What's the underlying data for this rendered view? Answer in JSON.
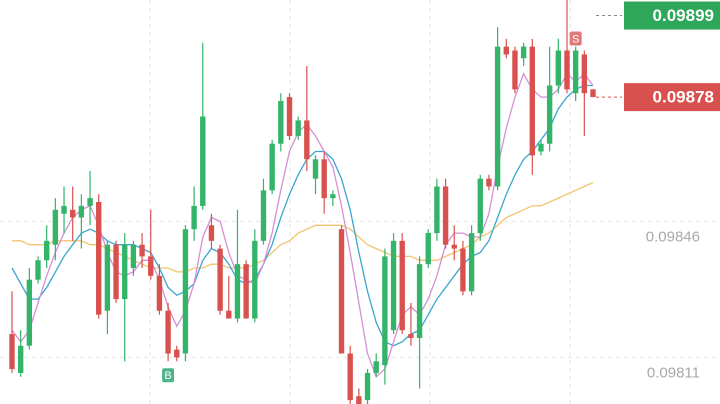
{
  "chart_data": {
    "type": "candlestick",
    "open": [
      0.09817,
      0.09807,
      0.09814,
      0.09831,
      0.09836,
      0.0984,
      0.09848,
      0.09849,
      0.09847,
      0.0985,
      0.09851,
      0.09823,
      0.0984,
      0.09826,
      0.09834,
      0.0984,
      0.09837,
      0.09832,
      0.09823,
      0.09813,
      0.09812,
      0.09844,
      0.0985,
      0.09845,
      0.09839,
      0.09823,
      0.09821,
      0.09835,
      0.09821,
      0.09841,
      0.09854,
      0.09866,
      0.09878,
      0.09868,
      0.09872,
      0.09857,
      0.09862,
      0.09852,
      0.09844,
      0.09812,
      0.09801,
      0.098,
      0.09807,
      0.09809,
      0.09818,
      0.09841,
      0.09817,
      0.09816,
      0.09835,
      0.09843,
      0.09855,
      0.0984,
      0.09839,
      0.09828,
      0.09843,
      0.09857,
      0.09855,
      0.09891,
      0.0989,
      0.09888,
      0.09891,
      0.09864,
      0.09866,
      0.09881,
      0.0989,
      0.09879,
      0.09889,
      0.0988
    ],
    "high": [
      0.09828,
      0.09818,
      0.09834,
      0.09837,
      0.09845,
      0.09852,
      0.09855,
      0.09855,
      0.09853,
      0.09859,
      0.09853,
      0.09841,
      0.09841,
      0.09843,
      0.09841,
      0.09843,
      0.09849,
      0.09835,
      0.09825,
      0.09814,
      0.09845,
      0.09855,
      0.09892,
      0.09848,
      0.0984,
      0.09832,
      0.09849,
      0.09836,
      0.09844,
      0.09857,
      0.09867,
      0.09879,
      0.09879,
      0.09873,
      0.09886,
      0.09863,
      0.09864,
      0.09854,
      0.09845,
      0.09814,
      0.09803,
      0.09808,
      0.09812,
      0.09839,
      0.09843,
      0.09843,
      0.09825,
      0.09837,
      0.09844,
      0.09857,
      0.09857,
      0.09845,
      0.09841,
      0.09845,
      0.09858,
      0.09858,
      0.09896,
      0.09893,
      0.09891,
      0.09892,
      0.09893,
      0.09867,
      0.09891,
      0.09893,
      0.09903,
      0.09891,
      0.0989,
      0.0988
    ],
    "low": [
      0.09807,
      0.09806,
      0.09813,
      0.0983,
      0.09834,
      0.09836,
      0.09843,
      0.09841,
      0.09839,
      0.09845,
      0.09821,
      0.09817,
      0.09825,
      0.0981,
      0.09832,
      0.09834,
      0.09831,
      0.09822,
      0.0981,
      0.0981,
      0.0981,
      0.09841,
      0.09849,
      0.09839,
      0.09822,
      0.09821,
      0.0982,
      0.09821,
      0.0982,
      0.0984,
      0.09853,
      0.09864,
      0.09867,
      0.09867,
      0.09859,
      0.09853,
      0.09848,
      0.0985,
      0.09812,
      0.09799,
      0.09799,
      0.09799,
      0.09806,
      0.09804,
      0.09817,
      0.09817,
      0.09814,
      0.09803,
      0.09834,
      0.09841,
      0.09839,
      0.09836,
      0.09827,
      0.09827,
      0.09841,
      0.09854,
      0.09854,
      0.09888,
      0.09879,
      0.09886,
      0.09858,
      0.09863,
      0.09864,
      0.09879,
      0.09879,
      0.09877,
      0.09868,
      0.09878
    ],
    "close": [
      0.09808,
      0.09814,
      0.09831,
      0.09836,
      0.09841,
      0.09849,
      0.0985,
      0.09847,
      0.0985,
      0.09852,
      0.09822,
      0.0984,
      0.09826,
      0.0984,
      0.0984,
      0.09837,
      0.09832,
      0.09823,
      0.09812,
      0.09811,
      0.09844,
      0.0985,
      0.09873,
      0.09841,
      0.09823,
      0.09821,
      0.09835,
      0.09821,
      0.09841,
      0.09854,
      0.09866,
      0.09877,
      0.09868,
      0.09872,
      0.09862,
      0.09862,
      0.09852,
      0.09853,
      0.09812,
      0.098,
      0.09799,
      0.09807,
      0.0981,
      0.09837,
      0.09841,
      0.09818,
      0.09816,
      0.09835,
      0.09843,
      0.09855,
      0.0984,
      0.09839,
      0.09828,
      0.09843,
      0.09857,
      0.09855,
      0.09891,
      0.09889,
      0.0988,
      0.09891,
      0.09863,
      0.09866,
      0.09881,
      0.0989,
      0.0988,
      0.0989,
      0.09879,
      0.09878
    ],
    "up_color": "#33b469",
    "down_color": "#d9514e",
    "series": [
      {
        "color": "#f2c46f",
        "values": [
          0.09841,
          0.09841,
          0.0984,
          0.0984,
          0.0984,
          0.09841,
          0.09841,
          0.09841,
          0.09841,
          0.0984,
          0.0984,
          0.09839,
          0.09838,
          0.09837,
          0.09836,
          0.09835,
          0.09834,
          0.09834,
          0.09834,
          0.09833,
          0.09833,
          0.09834,
          0.09834,
          0.09835,
          0.09835,
          0.09834,
          0.09834,
          0.09834,
          0.09835,
          0.09836,
          0.09838,
          0.0984,
          0.09841,
          0.09843,
          0.09844,
          0.09845,
          0.09845,
          0.09845,
          0.09845,
          0.09844,
          0.09842,
          0.0984,
          0.09839,
          0.09838,
          0.09837,
          0.09837,
          0.09837,
          0.09836,
          0.09836,
          0.09836,
          0.09837,
          0.09838,
          0.09839,
          0.0984,
          0.09842,
          0.09843,
          0.09845,
          0.09847,
          0.09848,
          0.09849,
          0.0985,
          0.0985,
          0.09851,
          0.09852,
          0.09853,
          0.09854,
          0.09855,
          0.09856
        ]
      },
      {
        "color": "#3aa6d0",
        "values": [
          0.09834,
          0.0983,
          0.09826,
          0.09826,
          0.09829,
          0.09833,
          0.09837,
          0.0984,
          0.09843,
          0.09844,
          0.09843,
          0.09841,
          0.0984,
          0.0984,
          0.0984,
          0.09839,
          0.09838,
          0.09834,
          0.09829,
          0.09827,
          0.09828,
          0.0983,
          0.09836,
          0.09839,
          0.09838,
          0.09835,
          0.09831,
          0.0983,
          0.09831,
          0.09835,
          0.0984,
          0.09847,
          0.09853,
          0.09858,
          0.09862,
          0.09864,
          0.09864,
          0.09862,
          0.09857,
          0.09849,
          0.09838,
          0.09828,
          0.0982,
          0.09815,
          0.09814,
          0.09815,
          0.09817,
          0.09818,
          0.09822,
          0.09826,
          0.09829,
          0.09832,
          0.09835,
          0.09837,
          0.09838,
          0.09841,
          0.09847,
          0.09853,
          0.09858,
          0.09862,
          0.09864,
          0.09867,
          0.0987,
          0.09875,
          0.09878,
          0.0988,
          0.09881,
          0.09881
        ]
      },
      {
        "color": "#d68fd4",
        "values": [
          0.09818,
          0.09815,
          0.09818,
          0.09825,
          0.09832,
          0.09838,
          0.09843,
          0.09847,
          0.09849,
          0.0985,
          0.09845,
          0.09838,
          0.09833,
          0.09832,
          0.09833,
          0.09836,
          0.09836,
          0.09831,
          0.09824,
          0.09819,
          0.09823,
          0.0983,
          0.09842,
          0.09847,
          0.09846,
          0.09838,
          0.09832,
          0.09831,
          0.0983,
          0.09835,
          0.09843,
          0.09854,
          0.09864,
          0.09869,
          0.09871,
          0.09868,
          0.09864,
          0.0986,
          0.0985,
          0.09838,
          0.09825,
          0.09812,
          0.09806,
          0.09808,
          0.09815,
          0.09822,
          0.09824,
          0.09822,
          0.09826,
          0.09832,
          0.0984,
          0.09843,
          0.09843,
          0.09842,
          0.09842,
          0.09848,
          0.0986,
          0.0987,
          0.09878,
          0.09884,
          0.0988,
          0.09878,
          0.09878,
          0.0988,
          0.09884,
          0.09882,
          0.09884,
          0.09881
        ]
      }
    ],
    "ylim": [
      0.09799,
      0.09903
    ],
    "yticks": [
      0.09811,
      0.09846
    ],
    "grid": true,
    "price_labels": [
      {
        "value": 0.09899,
        "color": "#2ea75a"
      },
      {
        "value": 0.09878,
        "color": "#d9514e"
      }
    ],
    "markers": [
      {
        "index": 18,
        "label": "B",
        "color": "#4fb38a",
        "position": "below"
      },
      {
        "index": 65,
        "label": "S",
        "color": "#e07a76",
        "position": "above"
      }
    ]
  }
}
